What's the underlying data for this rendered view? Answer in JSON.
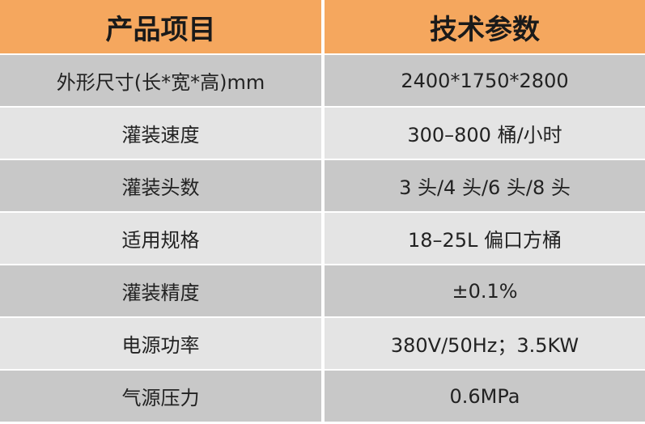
{
  "table": {
    "header": [
      "产品项目",
      "技术参数"
    ],
    "rows": [
      [
        "外形尺寸(长*宽*高)mm",
        "2400*1750*2800"
      ],
      [
        "灌装速度",
        "300–800 桶/小时"
      ],
      [
        "灌装头数",
        "3 头/4 头/6 头/8 头"
      ],
      [
        "适用规格",
        "18–25L 偏口方桶"
      ],
      [
        "灌装精度",
        "±0.1%"
      ],
      [
        "电源功率",
        "380V/50Hz；3.5KW"
      ],
      [
        "气源压力",
        "0.6MPa"
      ]
    ]
  }
}
